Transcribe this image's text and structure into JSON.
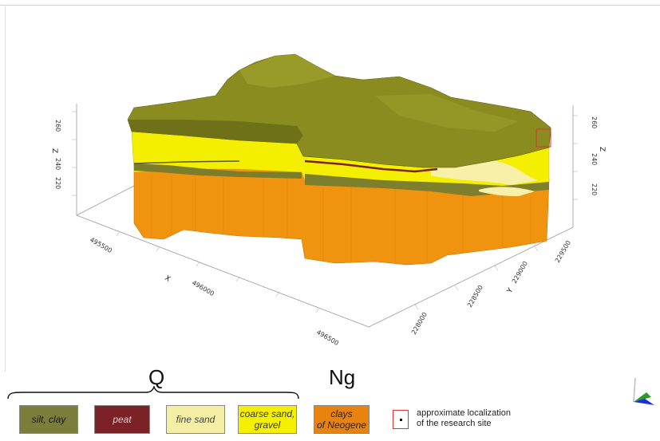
{
  "diagram": {
    "axes": {
      "z_left_label": "Z",
      "z_left_ticks": [
        "260",
        "240",
        "220"
      ],
      "z_right_label": "Z",
      "z_right_ticks": [
        "260",
        "240",
        "220"
      ],
      "x_label": "X",
      "x_ticks": [
        "495500",
        "496000",
        "496500"
      ],
      "y_label": "Y",
      "y_ticks": [
        "229500",
        "229000",
        "228500",
        "228000"
      ]
    },
    "colors": {
      "silt_clay": "#7b7d3a",
      "peat": "#7a2226",
      "fine_sand": "#f5efa5",
      "coarse_sand": "#f4f000",
      "clays_neogene": "#e8830f",
      "site_marker": "#dd3333"
    }
  },
  "legend": {
    "group_q": "Q",
    "group_ng": "Ng",
    "items": {
      "silt_clay": "silt, clay",
      "peat": "peat",
      "fine_sand": "fine sand",
      "coarse_line1": "coarse sand,",
      "coarse_line2": "gravel",
      "clays_line1": "clays",
      "clays_line2": "of Neogene"
    },
    "site": {
      "line1": "approximate localization",
      "line2": "of the research site"
    }
  }
}
